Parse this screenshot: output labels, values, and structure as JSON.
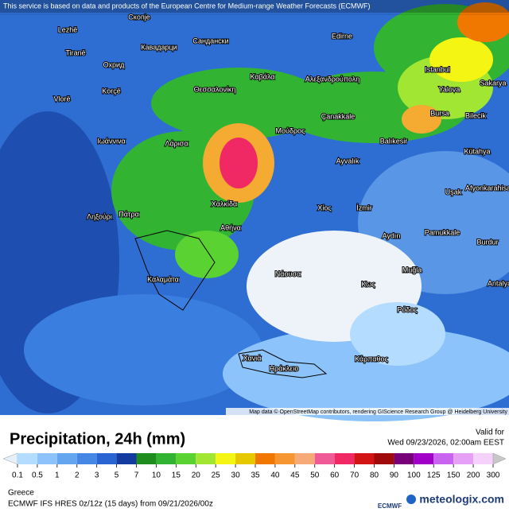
{
  "header": {
    "notice": "This service is based on data and products of the European Centre for Medium-range Weather Forecasts (ECMWF)"
  },
  "map": {
    "places": [
      "Скопје",
      "Lezhë",
      "Tiranë",
      "Кавадарци",
      "Сандански",
      "Edirne",
      "Охрид",
      "Istanbul",
      "Sakarya",
      "Korçë",
      "Θεσσαλονίκη",
      "Καβάλα",
      "Αλεξανδρούπολη",
      "Vlorë",
      "Yalova",
      "Bursa",
      "Bilecik",
      "Çanakkale",
      "Ιωάννινα",
      "Λάρισα",
      "Μούδρος",
      "Balıkesir",
      "Kütahya",
      "Ayvalık",
      "Χαλκίδα",
      "Ληξούρι",
      "Πάτρα",
      "Χίος",
      "İzmir",
      "Uşak",
      "Afyonkarahisar",
      "Αθήνα",
      "Aydın",
      "Pamukkale",
      "Burdur",
      "Muğla",
      "Νάουσα",
      "Καλαμάτα",
      "Κως",
      "Antalya",
      "Ρόδος",
      "Χανιά",
      "Ηράκλειο",
      "Κάρπαθος"
    ],
    "attribution": "Map data © OpenStreetMap contributors, rendering GIScience Research Group @ Heidelberg University"
  },
  "legend": {
    "title": "Precipitation, 24h (mm)",
    "valid_label": "Valid for",
    "valid_time": "Wed 09/23/2026, 02:00am EEST",
    "scale": {
      "ticks": [
        0.1,
        0.5,
        1,
        2,
        3,
        5,
        7,
        10,
        15,
        20,
        25,
        30,
        35,
        40,
        45,
        50,
        60,
        70,
        80,
        90,
        100,
        125,
        150,
        200,
        300
      ],
      "below_color": "#e6f0fa",
      "colors": [
        "#b4dcff",
        "#8cc3fa",
        "#64a5f0",
        "#4687e6",
        "#2a64d2",
        "#143ca0",
        "#1e8c1e",
        "#32b432",
        "#5ad232",
        "#a0e632",
        "#f5f514",
        "#e6c800",
        "#f07800",
        "#f59632",
        "#f5aa78",
        "#f05a96",
        "#f02864",
        "#d21414",
        "#a00a0a",
        "#780078",
        "#a000c8",
        "#c864f0",
        "#e6a0f5",
        "#f5d2fa",
        "#e6e6e6"
      ],
      "above_color": "#c8c8c8"
    }
  },
  "footer": {
    "region": "Greece",
    "model": "ECMWF IFS HRES 0z/12z (15 days) from 09/21/2026/00z",
    "brand_left": "ECMWF",
    "brand_right": "meteologix.com"
  }
}
